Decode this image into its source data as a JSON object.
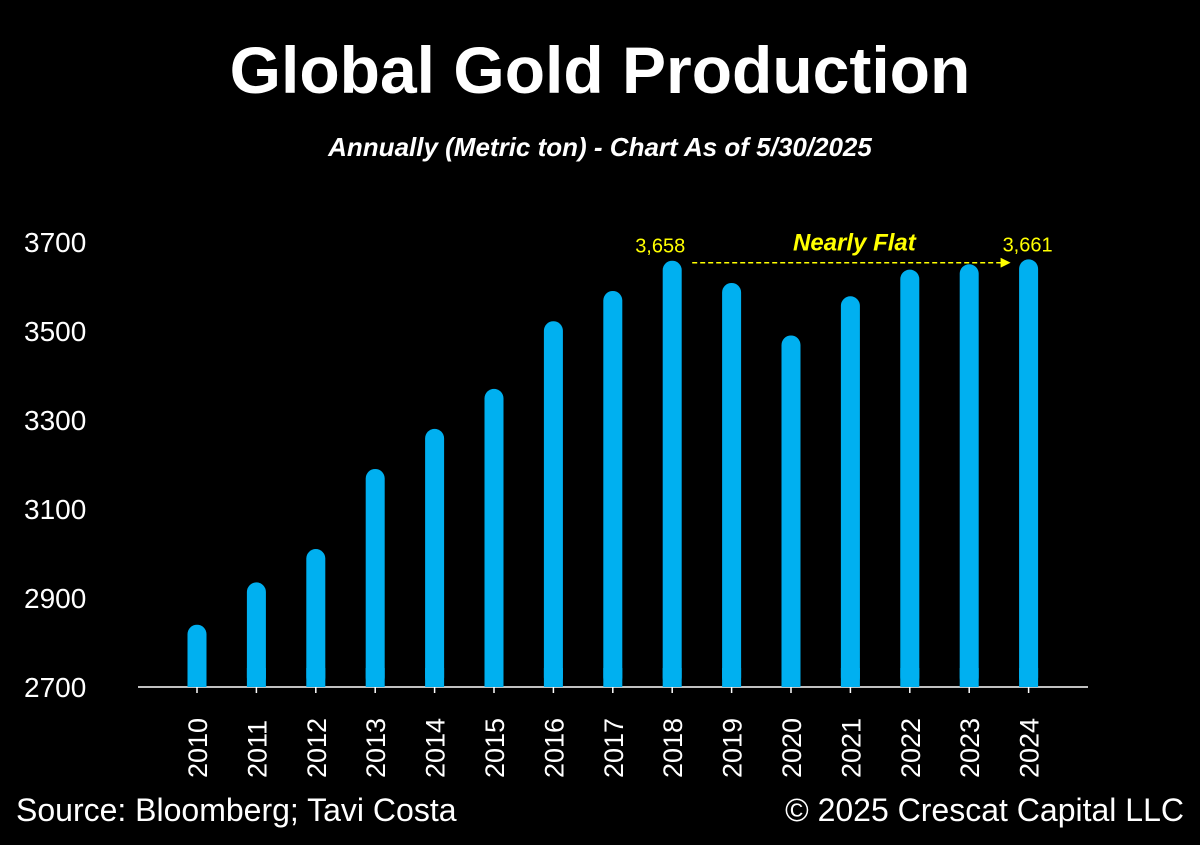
{
  "header": {
    "title": "Global Gold Production",
    "subtitle": "Annually (Metric ton) - Chart As of 5/30/2025"
  },
  "footer": {
    "source": "Source: Bloomberg; Tavi Costa",
    "copyright": "© 2025 Crescat Capital LLC"
  },
  "colors": {
    "background": "#000000",
    "bar": "#00b0f0",
    "text": "#ffffff",
    "annotation": "#ffff00"
  },
  "chart_data": {
    "type": "bar",
    "title": "Global Gold Production",
    "subtitle": "Annually (Metric ton) - Chart As of 5/30/2025",
    "xlabel": "",
    "ylabel": "",
    "categories": [
      "2010",
      "2011",
      "2012",
      "2013",
      "2014",
      "2015",
      "2016",
      "2017",
      "2018",
      "2019",
      "2020",
      "2021",
      "2022",
      "2023",
      "2024"
    ],
    "values": [
      2840,
      2935,
      3010,
      3190,
      3280,
      3370,
      3522,
      3590,
      3658,
      3608,
      3490,
      3578,
      3638,
      3650,
      3661
    ],
    "ylim": [
      2700,
      3700
    ],
    "yticks": [
      2700,
      2900,
      3100,
      3300,
      3500,
      3700
    ],
    "grid": false,
    "legend": "none",
    "data_labels": [
      {
        "category": "2018",
        "text": "3,658"
      },
      {
        "category": "2024",
        "text": "3,661"
      }
    ],
    "annotation": {
      "text": "Nearly Flat",
      "from": "2018",
      "to": "2024",
      "style": "dashed-arrow"
    }
  }
}
